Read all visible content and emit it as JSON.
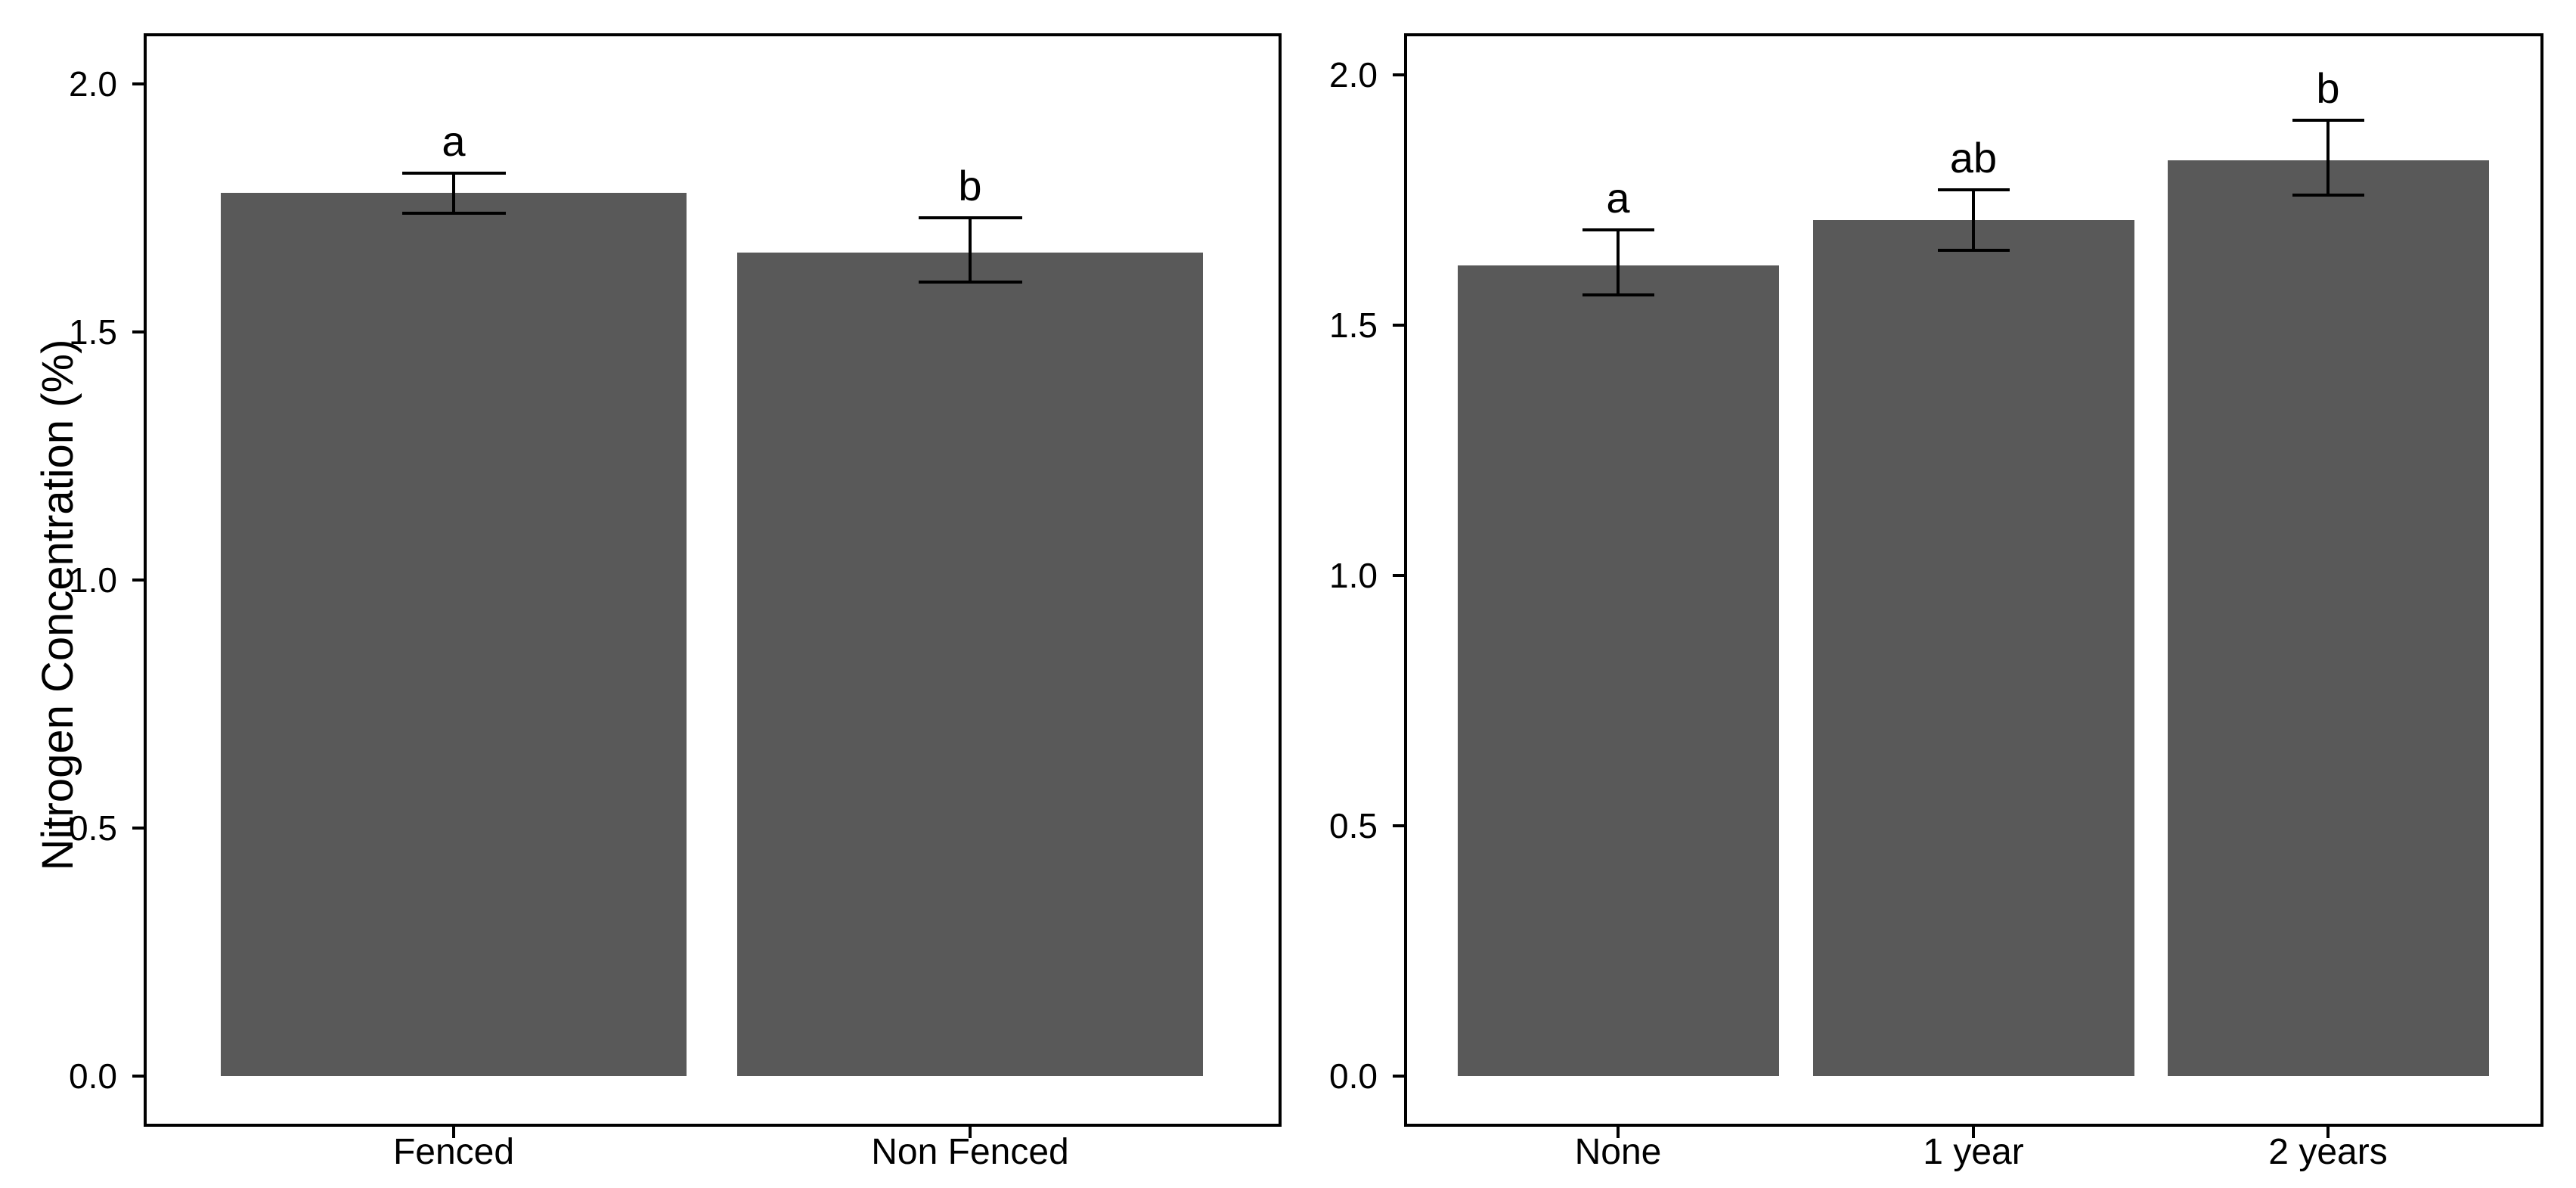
{
  "figure": {
    "background": "#ffffff",
    "bar_fill": "#595959",
    "axis_color": "#000000",
    "y_axis_title": "Nitrogen Concentration (%)"
  },
  "chart_data": [
    {
      "type": "bar",
      "title": "",
      "xlabel": "",
      "ylabel": "Nitrogen Concentration (%)",
      "ylim": [
        -0.1,
        2.1
      ],
      "yticks": [
        0.0,
        0.5,
        1.0,
        1.5,
        2.0
      ],
      "ytick_labels": [
        "0.0",
        "0.5",
        "1.0",
        "1.5",
        "2.0"
      ],
      "grid": false,
      "legend": "none",
      "categories": [
        "Fenced",
        "Non Fenced"
      ],
      "values": [
        1.78,
        1.66
      ],
      "error_low": [
        1.74,
        1.6
      ],
      "error_high": [
        1.82,
        1.73
      ],
      "sig_letters": [
        "a",
        "b"
      ]
    },
    {
      "type": "bar",
      "title": "",
      "xlabel": "",
      "ylabel": "",
      "ylim": [
        -0.1,
        2.1
      ],
      "yticks": [
        0.0,
        0.5,
        1.0,
        1.5,
        2.0
      ],
      "ytick_labels": [
        "0.0",
        "0.5",
        "1.0",
        "1.5",
        "2.0"
      ],
      "grid": false,
      "legend": "none",
      "categories": [
        "None",
        "1 year",
        "2 years"
      ],
      "values": [
        1.62,
        1.71,
        1.83
      ],
      "error_low": [
        1.56,
        1.65,
        1.76
      ],
      "error_high": [
        1.69,
        1.77,
        1.91
      ],
      "sig_letters": [
        "a",
        "ab",
        "b"
      ]
    }
  ]
}
